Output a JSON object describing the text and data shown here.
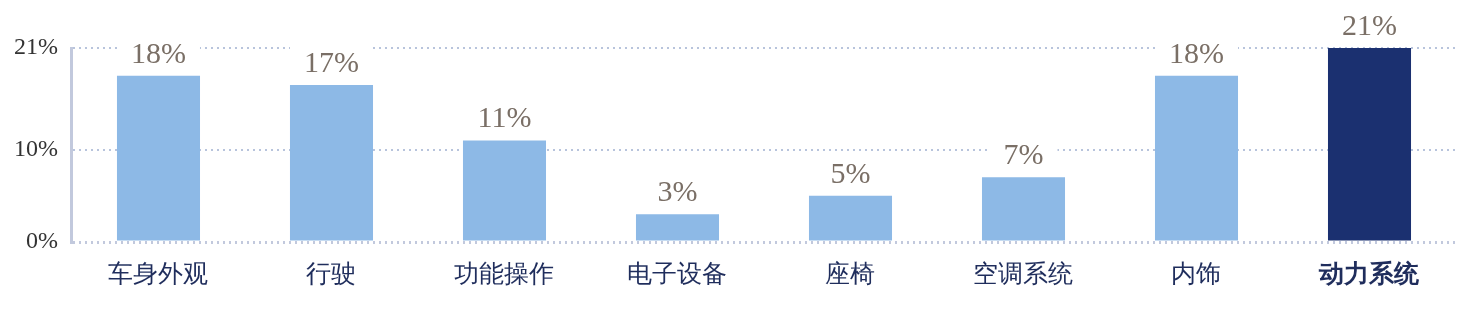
{
  "chart_data": {
    "type": "bar",
    "categories": [
      "车身外观",
      "行驶",
      "功能操作",
      "电子设备",
      "座椅",
      "空调系统",
      "内饰",
      "动力系统"
    ],
    "values": [
      18,
      17,
      11,
      3,
      5,
      7,
      18,
      21
    ],
    "colors": [
      "#8db9e6",
      "#8db9e6",
      "#8db9e6",
      "#8db9e6",
      "#8db9e6",
      "#8db9e6",
      "#8db9e6",
      "#1b3070"
    ],
    "ylim": [
      0,
      21
    ],
    "yticks": [
      {
        "value": 0,
        "label": "0%"
      },
      {
        "value": 10,
        "label": "10%"
      },
      {
        "value": 21,
        "label": "21%"
      }
    ],
    "value_labels": [
      "18%",
      "17%",
      "11%",
      "3%",
      "5%",
      "7%",
      "18%",
      "21%"
    ],
    "grid": "y"
  }
}
